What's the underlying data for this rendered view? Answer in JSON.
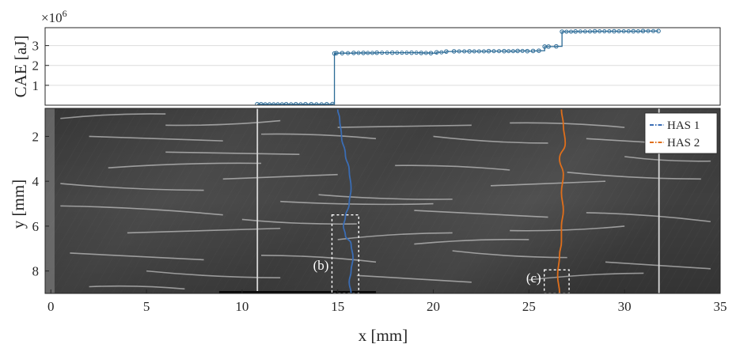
{
  "chart_data": [
    {
      "type": "line",
      "panel": "top",
      "ylabel": "CAE [aJ]",
      "exponent_label": "×10",
      "exponent_power": "6",
      "xlim": [
        0,
        35
      ],
      "ylim": [
        0,
        3.9
      ],
      "yticks": [
        1,
        2,
        3
      ],
      "grid": true,
      "series": [
        {
          "color": "#2a6a96",
          "x": [
            11.0,
            11.2,
            12.5,
            13.0,
            13.5,
            13.8,
            14.6,
            14.9,
            15.0,
            15.1,
            15.4,
            16.0,
            16.5,
            17.2,
            18.0,
            19.0,
            19.5,
            20.0,
            20.3,
            20.8,
            21.2,
            22.0,
            23.0,
            23.8,
            24.5,
            25.0,
            25.3,
            25.6,
            25.9,
            26.1,
            26.5,
            26.8,
            27.5,
            28.5,
            29.5,
            30.5,
            31.0,
            31.8
          ],
          "y": [
            0.05,
            0.05,
            0.05,
            0.05,
            0.05,
            0.05,
            0.05,
            0.06,
            2.6,
            2.62,
            2.62,
            2.63,
            2.63,
            2.64,
            2.64,
            2.64,
            2.63,
            2.62,
            2.66,
            2.7,
            2.71,
            2.71,
            2.72,
            2.72,
            2.73,
            2.72,
            2.73,
            2.74,
            2.95,
            2.95,
            2.96,
            3.7,
            3.71,
            3.72,
            3.72,
            3.72,
            3.73,
            3.73
          ]
        }
      ]
    },
    {
      "type": "line",
      "panel": "bottom",
      "xlabel": "x [mm]",
      "ylabel": "y [mm]",
      "xlim": [
        -0.3,
        35
      ],
      "ylim": [
        9,
        0.75
      ],
      "xticks": [
        0,
        5,
        10,
        15,
        20,
        25,
        30,
        35
      ],
      "yticks": [
        2,
        4,
        6,
        8
      ],
      "legend_position": "top-right",
      "background": "grayscale micrograph with white crack streaks",
      "vertical_lines_x": [
        10.8,
        31.8
      ],
      "series": [
        {
          "name": "HAS 1",
          "color": "#3a6db5",
          "x": [
            15.0,
            15.1,
            15.2,
            15.4,
            15.6,
            15.7,
            15.6,
            15.4,
            15.3,
            15.4,
            15.7,
            15.8,
            15.7,
            15.6,
            15.7
          ],
          "y": [
            0.8,
            1.2,
            2.0,
            2.8,
            3.5,
            4.3,
            5.0,
            5.6,
            6.0,
            6.4,
            6.8,
            7.4,
            8.0,
            8.5,
            9.0
          ]
        },
        {
          "name": "HAS 2",
          "color": "#e06f1b",
          "x": [
            26.7,
            26.8,
            26.9,
            26.6,
            26.8,
            26.7,
            26.8,
            26.7,
            26.7,
            26.6,
            26.5,
            26.6
          ],
          "y": [
            0.8,
            1.5,
            2.3,
            3.0,
            3.7,
            4.5,
            5.3,
            6.0,
            6.7,
            7.3,
            8.2,
            9.0
          ]
        }
      ],
      "annotations": [
        {
          "label": "(b)",
          "box_x": [
            14.7,
            16.1
          ],
          "box_y": [
            5.5,
            9.0
          ]
        },
        {
          "label": "(c)",
          "box_x": [
            25.8,
            27.1
          ],
          "box_y": [
            7.95,
            9.0
          ]
        }
      ],
      "dark_bar_x": [
        8.8,
        17.0
      ]
    }
  ]
}
